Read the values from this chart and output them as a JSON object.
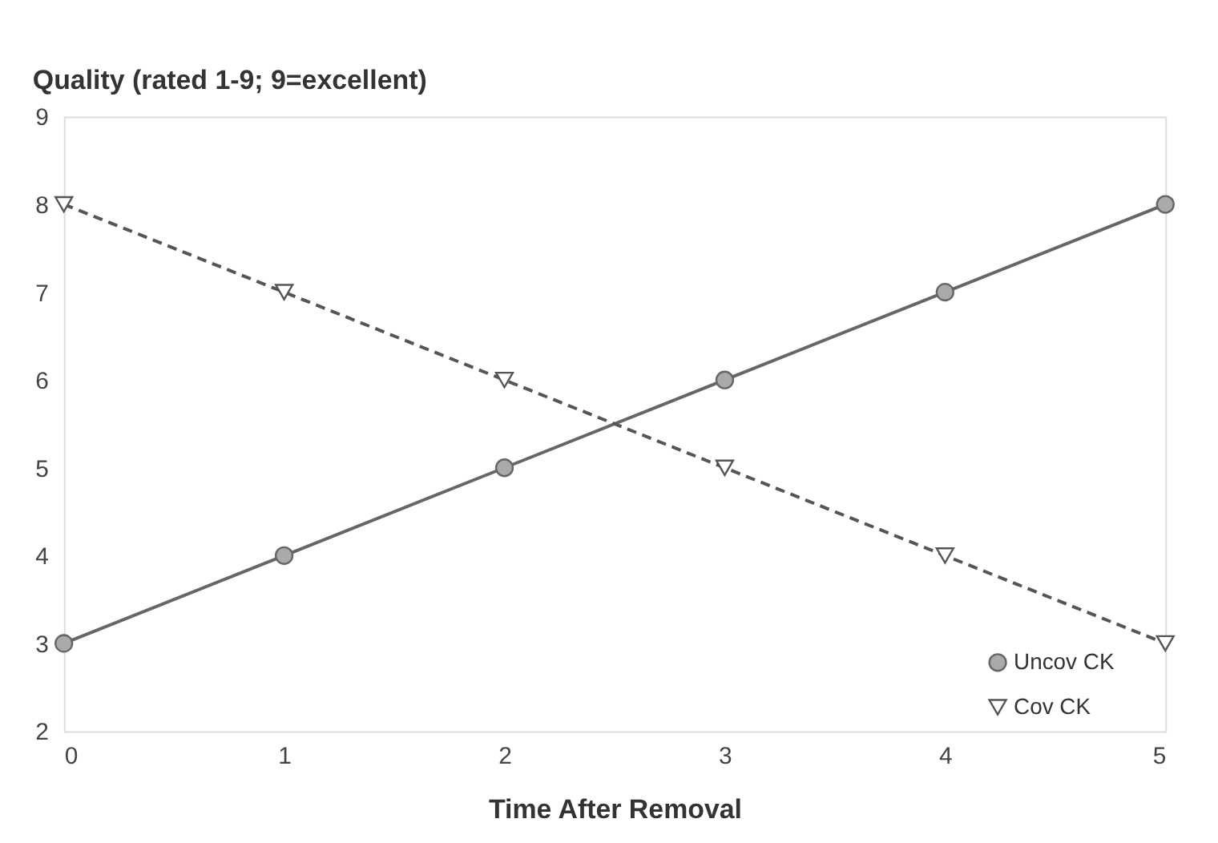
{
  "chart_data": {
    "type": "line",
    "ylabel": "Quality (rated 1-9; 9=excellent)",
    "xlabel": "Time After Removal",
    "x": [
      0,
      1,
      2,
      3,
      4,
      5
    ],
    "series": [
      {
        "name": "Uncov CK",
        "color": "#666666",
        "marker": "circle",
        "line_style": "solid",
        "values": [
          3,
          4,
          5,
          6,
          7,
          8
        ]
      },
      {
        "name": "Cov CK",
        "color": "#555555",
        "marker": "triangle",
        "line_style": "dashed",
        "values": [
          8,
          7,
          6,
          5,
          4,
          3
        ]
      }
    ],
    "xlim": [
      0,
      5
    ],
    "xticks": [
      0,
      1,
      2,
      3,
      4,
      5
    ],
    "ylim": [
      2,
      9
    ],
    "yticks": [
      2,
      3,
      4,
      5,
      6,
      7,
      8,
      9
    ],
    "grid": false,
    "legend": "bottom right"
  }
}
